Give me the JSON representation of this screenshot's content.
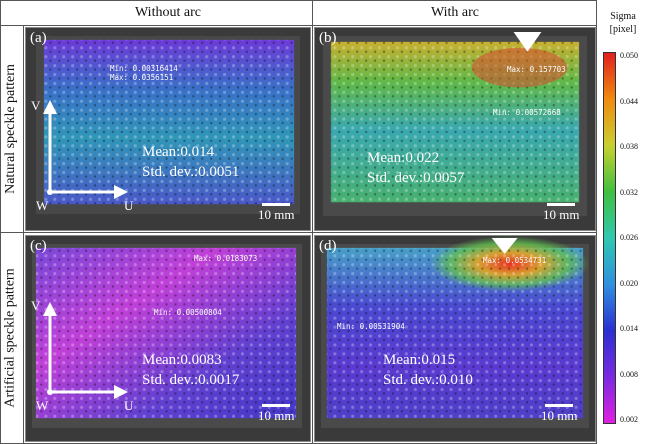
{
  "columns": [
    "Without arc",
    "With arc"
  ],
  "rows": [
    "Natural speckle pattern",
    "Artificial speckle pattern"
  ],
  "colorbar": {
    "title_line1": "Sigma",
    "title_line2": "[pixel]",
    "ticks": [
      "0.050",
      "0.044",
      "0.038",
      "0.032",
      "0.026",
      "0.020",
      "0.014",
      "0.008",
      "0.002"
    ],
    "colors": [
      "#e02020",
      "#f08a10",
      "#c8d030",
      "#40c040",
      "#30c8b0",
      "#3090e0",
      "#2a30d0",
      "#7a2ae0",
      "#e020e0"
    ]
  },
  "panels": [
    {
      "label": "(a)",
      "min": "Min: 0.00316414",
      "max": "Max: 0.0356151",
      "mean": "Mean:0.014",
      "std": "Std. dev.:0.0051",
      "scale": "10 mm"
    },
    {
      "label": "(b)",
      "min": "Min: 0.00572668",
      "max": "Max: 0.157703",
      "mean": "Mean:0.022",
      "std": "Std. dev.:0.0057",
      "scale": "10 mm"
    },
    {
      "label": "(c)",
      "min": "Min: 0.00500804",
      "max": "Max: 0.0183073",
      "mean": "Mean:0.0083",
      "std": "Std. dev.:0.0017",
      "scale": "10 mm"
    },
    {
      "label": "(d)",
      "min": "Min: 0.00531904",
      "max": "Max: 0.0534731",
      "mean": "Mean:0.015",
      "std": "Std. dev.:0.010",
      "scale": "10 mm"
    }
  ],
  "axes": {
    "v": "V",
    "u": "U",
    "w": "W"
  }
}
